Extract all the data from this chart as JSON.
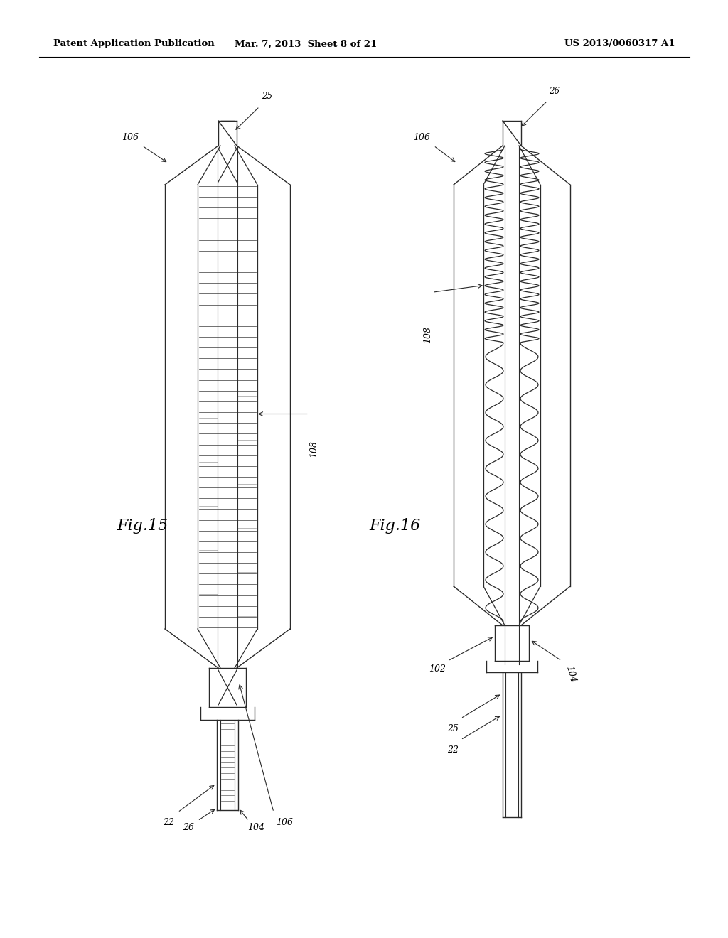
{
  "bg_color": "#ffffff",
  "header_left": "Patent Application Publication",
  "header_mid": "Mar. 7, 2013  Sheet 8 of 21",
  "header_right": "US 2013/0060317 A1",
  "fig15_label": "Fig.15",
  "fig16_label": "Fig.16",
  "line_color": "#2a2a2a",
  "line_width": 1.0
}
